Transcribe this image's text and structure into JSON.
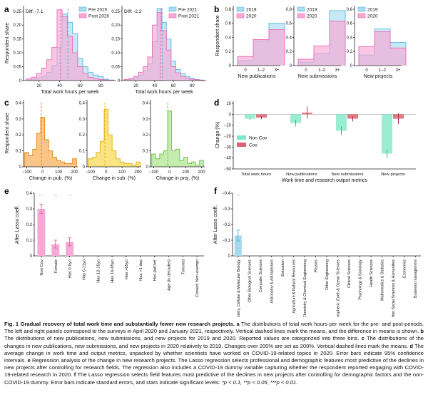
{
  "colors": {
    "pre": "#a9dcf0",
    "pre_line": "#58b8e3",
    "post": "#f7a8d4",
    "post_line": "#ee6bb5",
    "overlap": "#c6c2ec",
    "pub": "#f7b76a",
    "pub_line": "#e58a1a",
    "sub": "#f8dc63",
    "sub_line": "#e6b81a",
    "proj": "#b5e89a",
    "proj_line": "#72c84a",
    "noncov": "#7fe8c8",
    "cov": "#d9636f",
    "lasso_e": "#f6a9d6",
    "lasso_f": "#a7d8ec"
  },
  "panel_letters": {
    "a": "a",
    "b": "b",
    "c": "c",
    "d": "d",
    "e": "e",
    "f": "f"
  },
  "panel_a": [
    {
      "diff": "Diff: -7.1",
      "legend": [
        "Pre 2020",
        "Post 2020"
      ],
      "xlabel": "Total work hours per week",
      "ylabel": "Respondent share",
      "xticks": [
        "20",
        "40",
        "60",
        "80"
      ],
      "yticks": [
        "0",
        "0.05",
        "0.10",
        "0.15",
        "0.20",
        "0.25"
      ],
      "chart_data": {
        "type": "bar",
        "x": [
          10,
          15,
          20,
          25,
          30,
          35,
          40,
          45,
          50,
          55,
          60,
          65,
          70,
          75,
          80,
          85,
          90
        ],
        "series": [
          {
            "name": "Pre 2020",
            "values": [
              0.003,
              0.005,
              0.01,
              0.015,
              0.03,
              0.055,
              0.12,
              0.24,
              0.21,
              0.17,
              0.08,
              0.05,
              0.03,
              0.02,
              0.015,
              0.005,
              0.002
            ]
          },
          {
            "name": "Post 2020",
            "values": [
              0.006,
              0.012,
              0.025,
              0.045,
              0.075,
              0.12,
              0.255,
              0.23,
              0.16,
              0.1,
              0.05,
              0.025,
              0.012,
              0.008,
              0.004,
              0.002,
              0.001
            ]
          }
        ],
        "means": [
          48,
          41
        ],
        "xlim": [
          5,
          95
        ],
        "ylim": [
          0,
          0.27
        ]
      }
    },
    {
      "diff": "Diff: -2.2",
      "legend": [
        "Pre 2021",
        "Post 2021"
      ],
      "xlabel": "Total work hours per week",
      "xticks": [
        "20",
        "40",
        "60",
        "80"
      ],
      "yticks": [
        "0",
        "0.05",
        "0.10",
        "0.15",
        "0.20",
        "0.25"
      ],
      "chart_data": {
        "type": "bar",
        "x": [
          10,
          15,
          20,
          25,
          30,
          35,
          40,
          45,
          50,
          55,
          60,
          65,
          70,
          75,
          80,
          85,
          90
        ],
        "series": [
          {
            "name": "Pre 2021",
            "values": [
              0.003,
              0.005,
              0.01,
              0.02,
              0.035,
              0.06,
              0.14,
              0.26,
              0.21,
              0.15,
              0.07,
              0.04,
              0.025,
              0.015,
              0.008,
              0.004,
              0.002
            ]
          },
          {
            "name": "Post 2021",
            "values": [
              0.004,
              0.008,
              0.015,
              0.03,
              0.05,
              0.085,
              0.2,
              0.245,
              0.18,
              0.11,
              0.05,
              0.028,
              0.015,
              0.008,
              0.005,
              0.003,
              0.001
            ]
          }
        ],
        "means": [
          48,
          46
        ],
        "xlim": [
          5,
          95
        ],
        "ylim": [
          0,
          0.27
        ]
      }
    }
  ],
  "panel_b": [
    {
      "xlabel": "New publications",
      "ylabel": "Respondent share",
      "legend": [
        "2019",
        "2020"
      ],
      "categories": [
        "0",
        "1–2",
        "3+"
      ],
      "yticks": [
        "0",
        "0.2",
        "0.4",
        "0.6",
        "0.8"
      ],
      "chart_data": {
        "type": "bar",
        "categories": [
          "0",
          "1–2",
          "3+"
        ],
        "series": [
          {
            "name": "2019",
            "values": [
              0.07,
              0.35,
              0.6
            ]
          },
          {
            "name": "2020",
            "values": [
              0.13,
              0.37,
              0.51
            ]
          }
        ],
        "ylim": [
          0,
          0.85
        ]
      }
    },
    {
      "xlabel": "New submissions",
      "legend": [
        "2019",
        "2020"
      ],
      "categories": [
        "0",
        "1–2",
        "3+"
      ],
      "yticks": [
        "0",
        "0.2",
        "0.4",
        "0.6",
        "0.8"
      ],
      "chart_data": {
        "type": "bar",
        "categories": [
          "0",
          "1–2",
          "3+"
        ],
        "series": [
          {
            "name": "2019",
            "values": [
              0.05,
              0.17,
              0.78
            ]
          },
          {
            "name": "2020",
            "values": [
              0.09,
              0.28,
              0.63
            ]
          }
        ],
        "ylim": [
          0,
          0.85
        ]
      }
    },
    {
      "xlabel": "New projects",
      "legend": [
        "2019",
        "2020"
      ],
      "categories": [
        "0",
        "1–2",
        "3+"
      ],
      "yticks": [
        "0",
        "0.2",
        "0.4",
        "0.6",
        "0.8"
      ],
      "chart_data": {
        "type": "bar",
        "categories": [
          "0",
          "1–2",
          "3+"
        ],
        "series": [
          {
            "name": "2019",
            "values": [
              0.15,
              0.52,
              0.33
            ]
          },
          {
            "name": "2020",
            "values": [
              0.27,
              0.48,
              0.25
            ]
          }
        ],
        "ylim": [
          0,
          0.85
        ]
      }
    }
  ],
  "panel_c": [
    {
      "xlabel": "Change in pub. (%)",
      "ylabel": "Respondent share",
      "xticks": [
        "−100",
        "0",
        "100",
        "200"
      ],
      "yticks": [
        "0",
        "0.1",
        "0.2",
        "0.3",
        "0.4"
      ],
      "chart_data": {
        "type": "bar",
        "x": [
          -100,
          -75,
          -50,
          -25,
          0,
          25,
          50,
          75,
          100,
          125,
          150,
          175,
          200
        ],
        "values": [
          0.09,
          0.07,
          0.11,
          0.21,
          0.31,
          0.17,
          0.1,
          0.06,
          0.04,
          0.03,
          0.02,
          0.02,
          0.05
        ],
        "mean": -8,
        "xlim": [
          -120,
          220
        ],
        "ylim": [
          0,
          0.42
        ]
      }
    },
    {
      "xlabel": "Change in sub. (%)",
      "xticks": [
        "−100",
        "0",
        "100",
        "200"
      ],
      "yticks": [
        "0",
        "0.1",
        "0.2",
        "0.3",
        "0.4"
      ],
      "chart_data": {
        "type": "bar",
        "x": [
          -100,
          -75,
          -50,
          -25,
          0,
          25,
          50,
          75,
          100,
          125,
          150,
          175,
          200
        ],
        "values": [
          0.05,
          0.06,
          0.09,
          0.16,
          0.36,
          0.2,
          0.1,
          0.05,
          0.03,
          0.02,
          0.02,
          0.01,
          0.03
        ],
        "mean": -8,
        "xlim": [
          -120,
          220
        ],
        "ylim": [
          0,
          0.42
        ]
      }
    },
    {
      "xlabel": "Change in proj. (%)",
      "xticks": [
        "−100",
        "0",
        "100",
        "200"
      ],
      "yticks": [
        "0",
        "0.1",
        "0.2",
        "0.3",
        "0.4"
      ],
      "chart_data": {
        "type": "bar",
        "x": [
          -100,
          -75,
          -50,
          -25,
          0,
          25,
          50,
          75,
          100,
          125,
          150,
          175,
          200
        ],
        "values": [
          0.08,
          0.05,
          0.08,
          0.1,
          0.35,
          0.1,
          0.11,
          0.04,
          0.06,
          0.02,
          0.03,
          0.01,
          0.04
        ],
        "mean": -12,
        "xlim": [
          -120,
          220
        ],
        "ylim": [
          0,
          0.42
        ]
      }
    }
  ],
  "panel_d": {
    "ylabel": "Change (%)",
    "xlabel": "Work time and research output metrics",
    "legend": [
      "Non Cov",
      "Cov"
    ],
    "categories": [
      "Total work hours",
      "New publications",
      "New submissions",
      "New projects"
    ],
    "yticks": [
      "10",
      "0",
      "−10",
      "−20",
      "−30",
      "−40",
      "−50"
    ],
    "chart_data": {
      "type": "bar",
      "categories": [
        "Total work hours",
        "New publications",
        "New submissions",
        "New projects"
      ],
      "series": [
        {
          "name": "Non Cov",
          "values": [
            -4,
            -8,
            -15,
            -36
          ],
          "err": [
            1.2,
            3,
            4,
            4
          ]
        },
        {
          "name": "Cov",
          "values": [
            -3,
            1.5,
            -4,
            -4
          ],
          "err": [
            1.5,
            5.5,
            2.5,
            5
          ]
        }
      ],
      "ylim": [
        -50,
        12
      ]
    }
  },
  "panel_e": {
    "ylabel": "After Lasso coeff.",
    "yticks": [
      "0.4",
      "0.3",
      "0.2",
      "0.1",
      "0"
    ],
    "stars": [
      "***",
      "**",
      "**"
    ],
    "chart_data": {
      "type": "bar",
      "categories": [
        "Non Cov",
        "Female",
        "Has 0-5yo",
        "Has 6-11yo",
        "Has 12-15yo",
        "Has 16-65yo",
        "Has >65yo",
        "Has >1 dep",
        "Has partner",
        "Age (in decades)",
        "Tenured",
        "Closed. Non-exempt"
      ],
      "values": [
        0.3,
        0.075,
        0.09,
        0,
        0,
        0,
        0,
        0,
        0,
        0,
        0,
        0
      ],
      "err": [
        0.03,
        0.025,
        0.025,
        0,
        0,
        0,
        0,
        0,
        0,
        0,
        0,
        0
      ],
      "ylim": [
        0,
        0.4
      ]
    }
  },
  "panel_f": {
    "ylabel": "After Lasso coeff.",
    "yticks": [
      "−0.4",
      "−0.3",
      "−0.2",
      "−0.1",
      "0"
    ],
    "stars": [
      "**"
    ],
    "chart_data": {
      "type": "bar",
      "categories": [
        "Biochemistry, Cellular & Molecular Biology",
        "Other Biological Sciences",
        "Computer Sciences",
        "Astronomy & Astrophysics",
        "Education",
        "Agriculture & Natural Resources",
        "Chemistry & Chemical Engineering",
        "Physics",
        "Other Engineering",
        "Atmospheric, Earth & Ocean Sciences",
        "Clinical Sciences",
        "Psychology & Sociology",
        "Health Sciences",
        "Mathematics & Statistics",
        "Other Social Sciences & Humanities",
        "Economics",
        "Business management"
      ],
      "values": [
        -0.13,
        0,
        0,
        0,
        0,
        0,
        0,
        0,
        0,
        0,
        0,
        0,
        0,
        0,
        0,
        0,
        0
      ],
      "err": [
        0.035,
        0,
        0,
        0,
        0,
        0,
        0,
        0,
        0,
        0,
        0,
        0,
        0,
        0,
        0,
        0,
        0
      ],
      "ylim": [
        -0.4,
        0
      ]
    }
  },
  "caption": {
    "title": "Fig. 1 Gradual recovery of total work time and substantially fewer new research projects.",
    "a_letter": "a",
    "a_text": "The distributions of total work hours per week for the pre- and post-periods. The left and right panels correspond to the surveys in April 2020 and January 2021, respectively. Vertical dashed lines mark the means, and the difference in means is shown.",
    "b_letter": "b",
    "b_text": "The distributions of new publications, new submissions, and new projects for 2019 and 2020. Reported values are categorized into three bins.",
    "c_letter": "c",
    "c_text": "The distributions of the changes in new publications, new submissions, and new projects in 2020 relatively to 2019. Changes over 200% are set as 200%. Vertical dashed lines mark the means.",
    "d_letter": "d",
    "d_text": "The average change in work time and output metrics, unpacked by whether scientists have worked on COVID-19-related topics in 2020. Error bars indicate 95% confidence intervals.",
    "e_letter": "e",
    "e_text": "Regression analysis of the change in new research projects. The Lasso regression selects professional and demographic features most predictive of the declines in new projects after controlling for research fields. The regression also includes a COVID-19 dummy variable capturing whether the respondent reported engaging with COVID-19-related research in 2020.",
    "f_letter": "f",
    "f_text": "The Lasso regression selects field features most predictive of the declines in new projects after controlling for demographic factors and the non-COVID-19 dummy. Error bars indicate standard errors, and stars indicate significant levels:",
    "sig_text": "*p < 0.1, **p < 0.05, ***p < 0.01."
  }
}
